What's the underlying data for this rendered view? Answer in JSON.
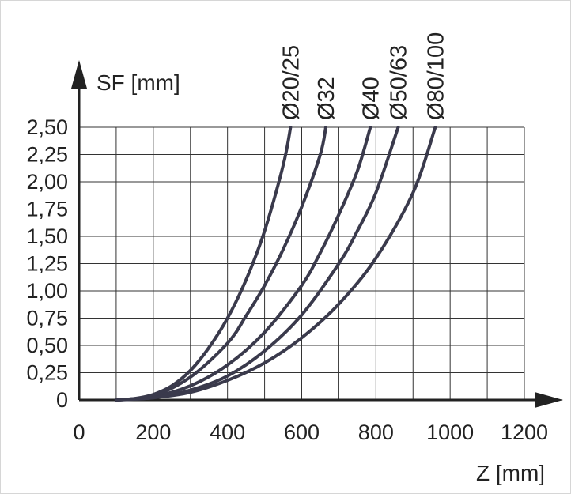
{
  "chart_data": {
    "type": "line",
    "xlabel": "Z [mm]",
    "ylabel": "SF [mm]",
    "xlim": [
      0,
      1200
    ],
    "ylim": [
      0,
      2.5
    ],
    "x_ticks": [
      "0",
      "200",
      "400",
      "600",
      "800",
      "1000",
      "1200"
    ],
    "y_ticks": [
      "0",
      "0,25",
      "0,50",
      "0,75",
      "1,00",
      "1,25",
      "1,50",
      "1,75",
      "2,00",
      "2,25",
      "2,50"
    ],
    "grid": true,
    "series": [
      {
        "name": "Ø20/25",
        "x": [
          100,
          150,
          200,
          250,
          300,
          350,
          400,
          450,
          500,
          550,
          570
        ],
        "y": [
          0,
          0.013,
          0.05,
          0.13,
          0.27,
          0.48,
          0.75,
          1.1,
          1.55,
          2.15,
          2.5
        ]
      },
      {
        "name": "Ø32",
        "x": [
          100,
          200,
          300,
          400,
          450,
          500,
          550,
          600,
          650,
          665
        ],
        "y": [
          0,
          0.04,
          0.21,
          0.52,
          0.77,
          1.05,
          1.38,
          1.77,
          2.25,
          2.5
        ]
      },
      {
        "name": "Ø40",
        "x": [
          100,
          200,
          300,
          400,
          500,
          600,
          650,
          700,
          750,
          785
        ],
        "y": [
          0,
          0.03,
          0.13,
          0.32,
          0.62,
          1.05,
          1.35,
          1.7,
          2.1,
          2.5
        ]
      },
      {
        "name": "Ø50/63",
        "x": [
          100,
          200,
          300,
          400,
          500,
          600,
          700,
          750,
          800,
          860
        ],
        "y": [
          0,
          0.02,
          0.09,
          0.22,
          0.45,
          0.78,
          1.25,
          1.55,
          1.9,
          2.5
        ]
      },
      {
        "name": "Ø80/100",
        "x": [
          100,
          200,
          300,
          400,
          500,
          600,
          700,
          800,
          900,
          960
        ],
        "y": [
          0,
          0.02,
          0.07,
          0.18,
          0.34,
          0.57,
          0.88,
          1.3,
          1.9,
          2.5
        ]
      }
    ],
    "line_color": "#3a3a4c"
  }
}
